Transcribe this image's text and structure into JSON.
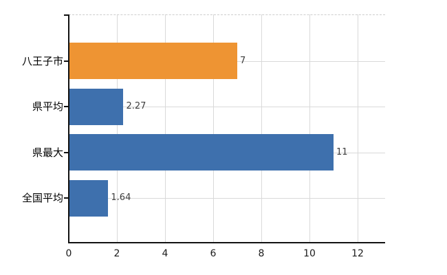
{
  "chart_data": {
    "type": "bar",
    "orientation": "horizontal",
    "title": "",
    "xlabel": "",
    "ylabel": "",
    "categories": [
      "八王子市",
      "県平均",
      "県最大",
      "全国平均"
    ],
    "values": [
      7,
      2.27,
      11,
      1.64
    ],
    "value_labels": [
      "7",
      "2.27",
      "11",
      "1.64"
    ],
    "bar_colors": [
      "#EE9433",
      "#3E70AD",
      "#3E70AD",
      "#3E70AD"
    ],
    "x_ticks": [
      0,
      2,
      4,
      6,
      8,
      10,
      12
    ],
    "x_tick_labels": [
      "0",
      "2",
      "4",
      "6",
      "8",
      "10",
      "12"
    ],
    "xlim": [
      0,
      13.1
    ],
    "grid": true,
    "legend": false,
    "colors": {
      "grid": "#D9D9D9",
      "plot_top_border": "#CCCCCC",
      "axis": "#111111",
      "category_label": "#000000",
      "value_label": "#3D3D3D",
      "tick_label": "#1A1A1A",
      "background": "#FFFFFF"
    }
  }
}
